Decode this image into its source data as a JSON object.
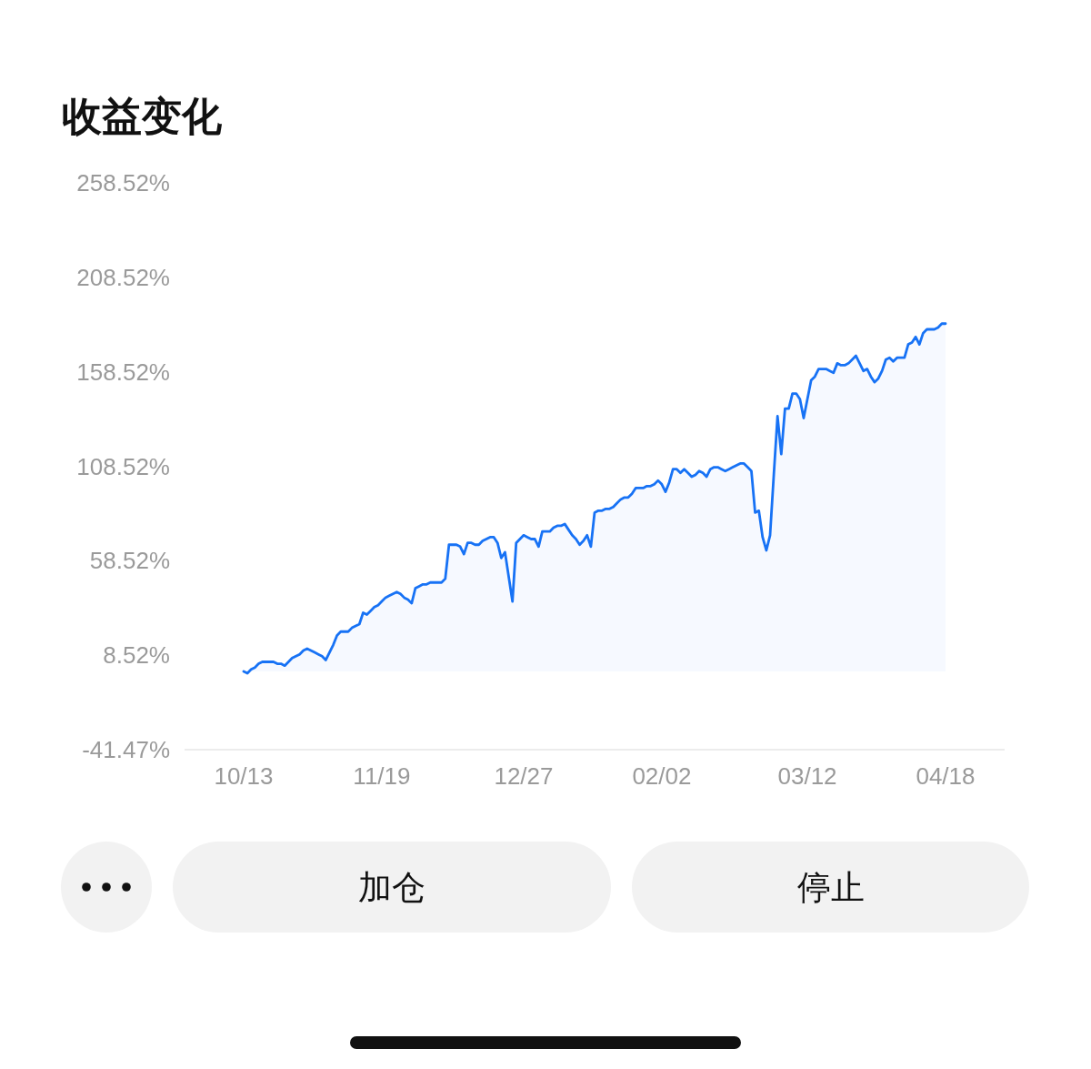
{
  "chart_data": {
    "type": "area",
    "title": "收益变化",
    "color": "#1772f5",
    "categories": [
      "10/13",
      null,
      null,
      null,
      null,
      null,
      null,
      null,
      null,
      null,
      null,
      null,
      null,
      null,
      null,
      null,
      null,
      null,
      null,
      null,
      null,
      null,
      null,
      null,
      null,
      null,
      null,
      null,
      null,
      null,
      null,
      null,
      null,
      null,
      null,
      null,
      null,
      "11/19",
      null,
      null,
      null,
      null,
      null,
      null,
      null,
      null,
      null,
      null,
      null,
      null,
      null,
      null,
      null,
      null,
      null,
      null,
      null,
      null,
      null,
      null,
      null,
      null,
      null,
      null,
      null,
      null,
      null,
      null,
      null,
      null,
      null,
      null,
      null,
      null,
      null,
      "12/27",
      null,
      null,
      null,
      null,
      null,
      null,
      null,
      null,
      null,
      null,
      null,
      null,
      null,
      null,
      null,
      null,
      null,
      null,
      null,
      null,
      null,
      null,
      null,
      null,
      null,
      null,
      null,
      null,
      null,
      null,
      null,
      null,
      null,
      null,
      null,
      null,
      "02/02",
      null,
      null,
      null,
      null,
      null,
      null,
      null,
      null,
      null,
      null,
      null,
      null,
      null,
      null,
      null,
      null,
      null,
      null,
      null,
      null,
      null,
      null,
      null,
      null,
      null,
      null,
      null,
      null,
      null,
      null,
      null,
      null,
      null,
      null,
      null,
      null,
      null,
      null,
      "03/12",
      null,
      null,
      null,
      null,
      null,
      null,
      null,
      null,
      null,
      null,
      null,
      null,
      null,
      null,
      null,
      null,
      null,
      null,
      null,
      null,
      null,
      null,
      null,
      null,
      null,
      null,
      null,
      null,
      null,
      null,
      null,
      null,
      null,
      null,
      null,
      null,
      "04/18"
    ],
    "values": [
      0,
      -1,
      1,
      2,
      4,
      5,
      5,
      5,
      5,
      4,
      4,
      3,
      5,
      7,
      8,
      9,
      11,
      12,
      11,
      10,
      9,
      8,
      6,
      10,
      14,
      19,
      21,
      21,
      21,
      23,
      24,
      25,
      31,
      30,
      32,
      34,
      35,
      37,
      39,
      40,
      41,
      42,
      41,
      39,
      38,
      36,
      44,
      45,
      46,
      46,
      47,
      47,
      47,
      47,
      49,
      67,
      67,
      67,
      66,
      62,
      68,
      68,
      67,
      67,
      69,
      70,
      71,
      71,
      68,
      60,
      63,
      50,
      37,
      68,
      70,
      72,
      71,
      70,
      70,
      66,
      74,
      74,
      74,
      76,
      77,
      77,
      78,
      75,
      72,
      70,
      67,
      69,
      72,
      66,
      84,
      85,
      85,
      86,
      86,
      87,
      89,
      91,
      92,
      92,
      94,
      97,
      97,
      97,
      98,
      98,
      99,
      101,
      99,
      95,
      100,
      107,
      107,
      105,
      107,
      105,
      103,
      104,
      106,
      105,
      103,
      107,
      108,
      108,
      107,
      106,
      107,
      108,
      109,
      110,
      110,
      108,
      106,
      84,
      85,
      71,
      64,
      72,
      104,
      135,
      115,
      139,
      139,
      147,
      147,
      144,
      134,
      144,
      154,
      156,
      160,
      160,
      160,
      159,
      158,
      163,
      162,
      162,
      163,
      165,
      167,
      163,
      159,
      160,
      156,
      153,
      155,
      159,
      165,
      166,
      164,
      166,
      166,
      166,
      173,
      174,
      177,
      173,
      179,
      181,
      181,
      181,
      182,
      184,
      184
    ],
    "ylim": [
      -41.47,
      258.52
    ],
    "yticks": [
      {
        "value": -41.47,
        "label": "-41.47%"
      },
      {
        "value": 8.52,
        "label": "8.52%"
      },
      {
        "value": 58.52,
        "label": "58.52%"
      },
      {
        "value": 108.52,
        "label": "108.52%"
      },
      {
        "value": 158.52,
        "label": "158.52%"
      },
      {
        "value": 208.52,
        "label": "208.52%"
      },
      {
        "value": 258.52,
        "label": "258.52%"
      }
    ],
    "annotations": [
      "加仓",
      "停止"
    ]
  }
}
